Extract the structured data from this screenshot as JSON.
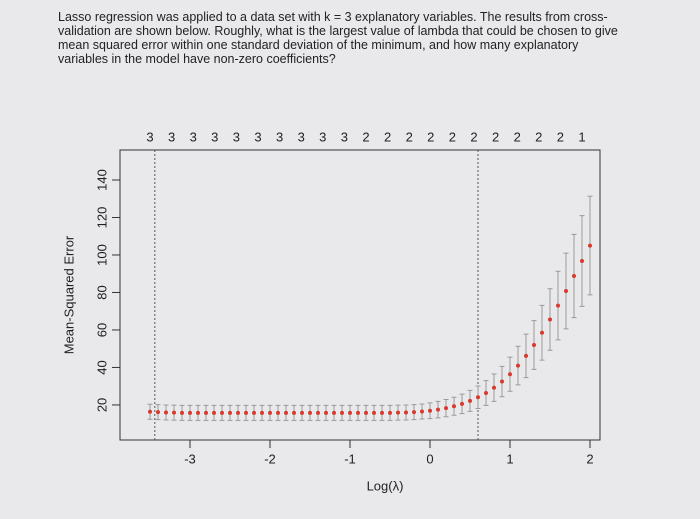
{
  "question": "Lasso regression was applied to a data set with k = 3 explanatory variables. The results from cross-validation are shown below. Roughly, what is the largest value of lambda that could be chosen to give mean squared error within one standard deviation of the minimum, and how many explanatory variables in the model have non-zero coefficients?",
  "chart_data": {
    "type": "errorbar",
    "xlabel": "Log(λ)",
    "ylabel": "Mean-Squared Error",
    "xlim": [
      -3.875,
      2.125
    ],
    "ylim": [
      1.3,
      156
    ],
    "xticks": [
      -3,
      -2,
      -1,
      0,
      1,
      2
    ],
    "yticks": [
      20,
      40,
      60,
      80,
      100,
      120,
      140
    ],
    "top_ticks": [
      {
        "value": -3.5,
        "label": "3"
      },
      {
        "value": -3.23,
        "label": "3"
      },
      {
        "value": -2.96,
        "label": "3"
      },
      {
        "value": -2.69,
        "label": "3"
      },
      {
        "value": -2.42,
        "label": "3"
      },
      {
        "value": -2.15,
        "label": "3"
      },
      {
        "value": -1.88,
        "label": "3"
      },
      {
        "value": -1.61,
        "label": "3"
      },
      {
        "value": -1.34,
        "label": "3"
      },
      {
        "value": -1.07,
        "label": "3"
      },
      {
        "value": -0.8,
        "label": "2"
      },
      {
        "value": -0.53,
        "label": "2"
      },
      {
        "value": -0.26,
        "label": "2"
      },
      {
        "value": 0.01,
        "label": "2"
      },
      {
        "value": 0.28,
        "label": "2"
      },
      {
        "value": 0.55,
        "label": "2"
      },
      {
        "value": 0.82,
        "label": "2"
      },
      {
        "value": 1.09,
        "label": "2"
      },
      {
        "value": 1.36,
        "label": "2"
      },
      {
        "value": 1.63,
        "label": "2"
      },
      {
        "value": 1.9,
        "label": "1"
      }
    ],
    "vlines": [
      -3.44,
      0.6
    ],
    "color": "#d8392f",
    "error_color": "#9a9a9a",
    "x": [
      -3.5,
      -3.4,
      -3.3,
      -3.2,
      -3.1,
      -3.0,
      -2.9,
      -2.8,
      -2.7,
      -2.6,
      -2.5,
      -2.4,
      -2.3,
      -2.2,
      -2.1,
      -2.0,
      -1.9,
      -1.8,
      -1.7,
      -1.6,
      -1.5,
      -1.4,
      -1.3,
      -1.2,
      -1.1,
      -1.0,
      -0.9,
      -0.8,
      -0.7,
      -0.6,
      -0.5,
      -0.4,
      -0.3,
      -0.2,
      -0.1,
      0.0,
      0.1,
      0.2,
      0.3,
      0.4,
      0.5,
      0.6,
      0.7,
      0.8,
      0.9,
      1.0,
      1.1,
      1.2,
      1.3,
      1.4,
      1.5,
      1.6,
      1.7,
      1.8,
      1.9,
      2.0
    ],
    "values": [
      16.4,
      16.2,
      16,
      15.9,
      15.8,
      15.8,
      15.8,
      15.8,
      15.8,
      15.8,
      15.8,
      15.8,
      15.8,
      15.8,
      15.8,
      15.8,
      15.8,
      15.8,
      15.8,
      15.8,
      15.8,
      15.8,
      15.8,
      15.8,
      15.8,
      15.8,
      15.8,
      15.8,
      15.8,
      15.8,
      15.8,
      15.9,
      16,
      16.2,
      16.5,
      16.9,
      17.5,
      18.3,
      19.3,
      20.6,
      22.2,
      24.1,
      26.4,
      29.2,
      32.5,
      36.4,
      41,
      46.2,
      52,
      58.5,
      65.6,
      73,
      80.8,
      88.8,
      96.8,
      105
    ],
    "errors": [
      4,
      4,
      4,
      4,
      4,
      4,
      4,
      4,
      4,
      4,
      4,
      4,
      4,
      4,
      4,
      4,
      4,
      4,
      4,
      4,
      4,
      4,
      4,
      4,
      4,
      4,
      4,
      4,
      4,
      4,
      4,
      4,
      4,
      4,
      4,
      4.2,
      4.4,
      4.6,
      4.8,
      5.2,
      5.6,
      6,
      6.6,
      7.3,
      8.1,
      9.1,
      10.3,
      11.6,
      13,
      14.6,
      16.4,
      18.3,
      20.2,
      22.2,
      24.2,
      26.3
    ]
  }
}
